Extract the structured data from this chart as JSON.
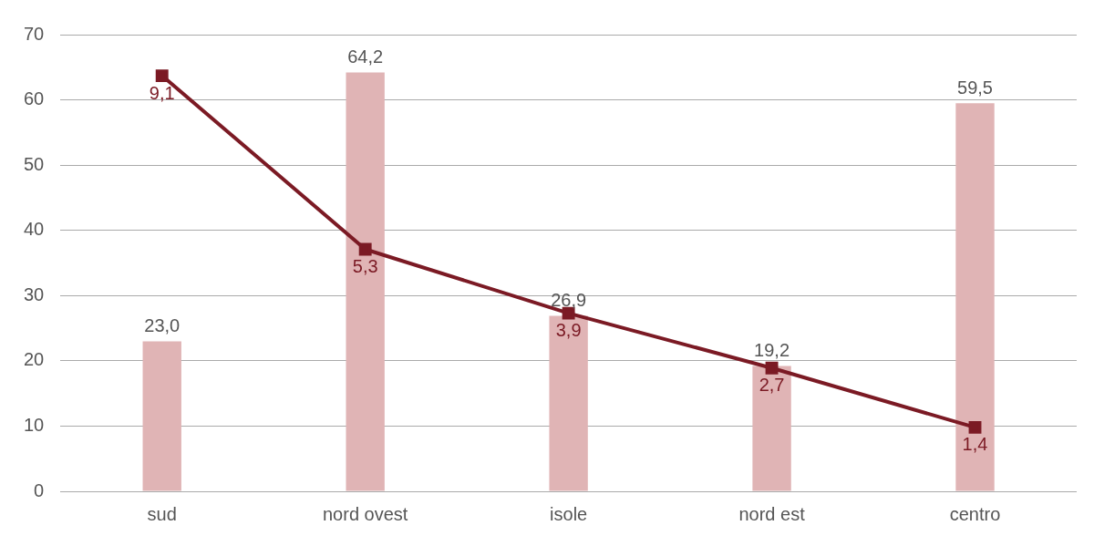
{
  "chart_data": {
    "type": "bar",
    "categories": [
      "sud",
      "nord ovest",
      "isole",
      "nord est",
      "centro"
    ],
    "series": [
      {
        "color": "#e0b4b5",
        "values": [
          23.0,
          64.2,
          26.9,
          19.2,
          59.5
        ],
        "value_labels": [
          "23,0",
          "64,2",
          "26,9",
          "19,2",
          "59,5"
        ]
      },
      {
        "type": "line",
        "axis": "y2",
        "color": "#7b1a24",
        "values": [
          9.1,
          5.3,
          3.9,
          2.7,
          1.4
        ],
        "value_labels": [
          "9,1",
          "5,3",
          "3,9",
          "2,7",
          "1,4"
        ]
      }
    ],
    "ylim": [
      0,
      70
    ],
    "yticks": [
      0,
      10,
      20,
      30,
      40,
      50,
      60,
      70
    ],
    "grid": "y",
    "legend": false,
    "marker": "square",
    "line_style": "solid"
  }
}
